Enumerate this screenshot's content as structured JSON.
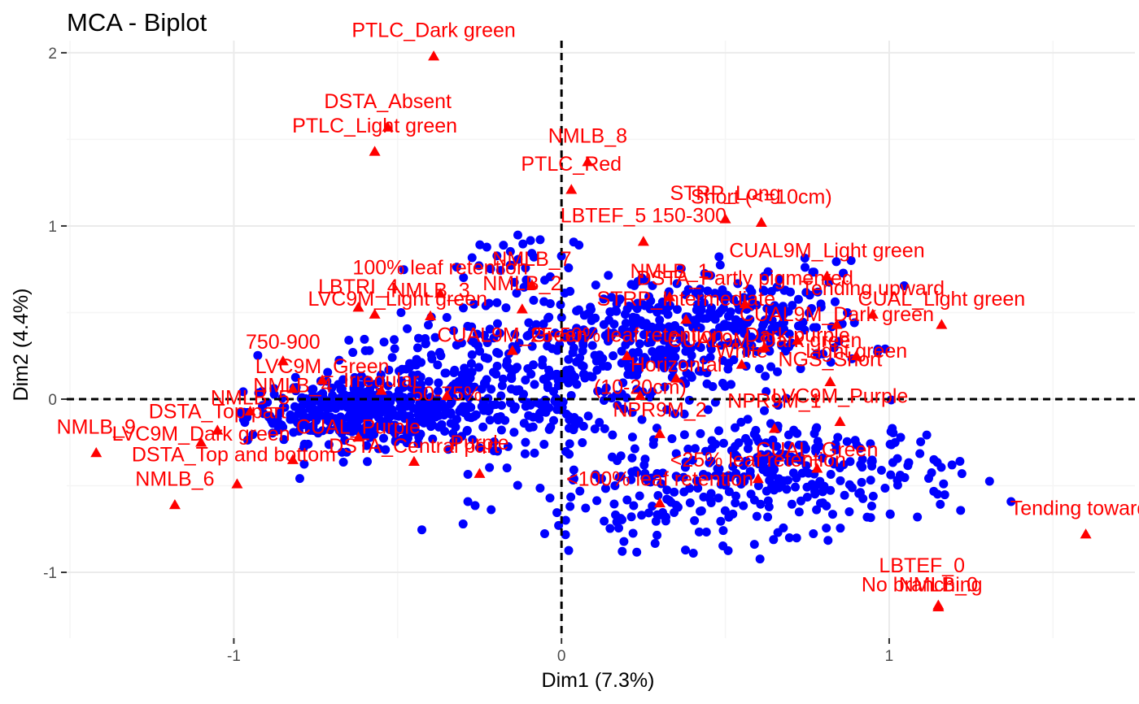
{
  "chart_data": {
    "type": "scatter",
    "title": "MCA - Biplot",
    "xlabel": "Dim1 (7.3%)",
    "ylabel": "Dim2 (4.4%)",
    "xlim": [
      -1.51,
      1.75
    ],
    "ylim": [
      -1.38,
      2.07
    ],
    "x_ticks": [
      -1,
      0,
      1
    ],
    "x_tick_labels": [
      "-1",
      "0",
      "1"
    ],
    "y_ticks": [
      -1,
      0,
      1,
      2
    ],
    "y_tick_labels": [
      "-1",
      "0",
      "1",
      "2"
    ],
    "grid": true,
    "reference_lines": {
      "x": 0,
      "y": 0,
      "style": "dashed"
    },
    "colors": {
      "individuals": "#0000ff",
      "variables": "#ff0000",
      "grid_major": "#ebebeb",
      "grid_minor": "#f5f5f5",
      "reference": "#000000"
    },
    "series": [
      {
        "kind": "individuals",
        "marker": "circle",
        "color": "#0000ff",
        "points": []
      },
      {
        "kind": "variable_categories",
        "marker": "triangle",
        "color": "#ff0000",
        "points": [
          {
            "label": "PTLC_Dark green",
            "x": -0.39,
            "y": 1.98
          },
          {
            "label": "DSTA_Absent",
            "x": -0.53,
            "y": 1.57
          },
          {
            "label": "PTLC_Light green",
            "x": -0.57,
            "y": 1.43
          },
          {
            "label": "NMLB_8",
            "x": 0.08,
            "y": 1.37
          },
          {
            "label": "PTLC_Red",
            "x": 0.03,
            "y": 1.21
          },
          {
            "label": "STRP_Long",
            "x": 0.5,
            "y": 1.04
          },
          {
            "label": "Short (<=10cm)",
            "x": 0.61,
            "y": 1.02
          },
          {
            "label": "LBTEF_5 150-300",
            "x": 0.25,
            "y": 0.91
          },
          {
            "label": "CUAL9M_Light green",
            "x": 0.81,
            "y": 0.71
          },
          {
            "label": "100% leaf retention",
            "x": -0.37,
            "y": 0.61
          },
          {
            "label": "NMLB_7",
            "x": -0.09,
            "y": 0.66
          },
          {
            "label": "NMLB_2",
            "x": -0.12,
            "y": 0.52
          },
          {
            "label": "NMLB_1",
            "x": 0.33,
            "y": 0.59
          },
          {
            "label": "DSTA_Partly pigmented",
            "x": 0.56,
            "y": 0.55
          },
          {
            "label": "Tending upward",
            "x": 0.95,
            "y": 0.49
          },
          {
            "label": "CUAL_Light green",
            "x": 1.16,
            "y": 0.43
          },
          {
            "label": "LBTRI_4",
            "x": -0.62,
            "y": 0.53
          },
          {
            "label": "NMLB_3",
            "x": -0.4,
            "y": 0.48
          },
          {
            "label": "LVC9M_Light green",
            "x": -0.57,
            "y": 0.49
          },
          {
            "label": "STRP_Intermediate",
            "x": 0.38,
            "y": 0.46
          },
          {
            "label": "CUAL9M_Dark green",
            "x": 0.84,
            "y": 0.43
          },
          {
            "label": "Dark purple",
            "x": 0.72,
            "y": 0.34
          },
          {
            "label": "CUAL9M_Dark green",
            "x": 0.62,
            "y": 0.3
          },
          {
            "label": "Light green",
            "x": 0.9,
            "y": 0.25
          },
          {
            "label": "750-900",
            "x": -0.85,
            "y": 0.22
          },
          {
            "label": "CUAL9M_Green",
            "x": -0.15,
            "y": 0.28
          },
          {
            "label": "25-50% leaf retention",
            "x": 0.2,
            "y": 0.25
          },
          {
            "label": "White",
            "x": 0.55,
            "y": 0.2
          },
          {
            "label": "NGS_Short",
            "x": 0.82,
            "y": 0.1
          },
          {
            "label": "LVC9M_Green",
            "x": -0.73,
            "y": 0.11
          },
          {
            "label": "Irregular",
            "x": -0.55,
            "y": 0.05
          },
          {
            "label": "Horizontal",
            "x": 0.35,
            "y": 0.12
          },
          {
            "label": "NMLB_4",
            "x": -0.82,
            "y": 0.06
          },
          {
            "label": "(10-20cm)",
            "x": 0.24,
            "y": 0.02
          },
          {
            "label": "50-75%",
            "x": -0.35,
            "y": 0.02
          },
          {
            "label": "NMLB_5",
            "x": -0.95,
            "y": -0.07
          },
          {
            "label": "LVC9M_Purple",
            "x": 0.85,
            "y": -0.13
          },
          {
            "label": "NPR9M_2",
            "x": 0.3,
            "y": -0.2
          },
          {
            "label": "NPR9M_1",
            "x": 0.65,
            "y": -0.17
          },
          {
            "label": "DSTA_Top part",
            "x": -1.05,
            "y": -0.18
          },
          {
            "label": "CUAL_Purple",
            "x": -0.62,
            "y": -0.22
          },
          {
            "label": "NMLB_9",
            "x": -1.42,
            "y": -0.31
          },
          {
            "label": "LVC9M_Dark green",
            "x": -1.1,
            "y": -0.25
          },
          {
            "label": "DSTA_Central part",
            "x": -0.45,
            "y": -0.36
          },
          {
            "label": "Purple",
            "x": -0.25,
            "y": -0.43
          },
          {
            "label": "DSTA_Top and bottom",
            "x": -0.82,
            "y": -0.35
          },
          {
            "label": "CUAL_Green",
            "x": 0.78,
            "y": -0.4
          },
          {
            "label": "<25% leaf retention",
            "x": 0.6,
            "y": -0.46
          },
          {
            "label": "NMLB_6",
            "x": -0.99,
            "y": -0.49
          },
          {
            "label": "<100% leaf retention",
            "x": 0.3,
            "y": -0.6
          },
          {
            "label": "NMLB_6",
            "x": -1.18,
            "y": -0.61
          },
          {
            "label": "Tending toward the ground",
            "x": 1.6,
            "y": -0.78
          },
          {
            "label": "LBTEF_0",
            "x": 1.15,
            "y": -1.19
          },
          {
            "label": "NMLB_0",
            "x": 1.15,
            "y": -1.2
          },
          {
            "label": "No branching",
            "x": 1.15,
            "y": -1.2
          }
        ]
      }
    ],
    "visible_labels": [
      {
        "text": "PTLC_Dark green",
        "x": -0.39,
        "y": 2.09
      },
      {
        "text": "DSTA_Absent",
        "x": -0.53,
        "y": 1.68
      },
      {
        "text": "PTLC_Light green",
        "x": -0.57,
        "y": 1.54
      },
      {
        "text": "NMLB_8",
        "x": 0.08,
        "y": 1.48
      },
      {
        "text": "PTLC_Red",
        "x": 0.03,
        "y": 1.32
      },
      {
        "text": "STRP_Long",
        "x": 0.5,
        "y": 1.15
      },
      {
        "text": "Short (<=10cm)",
        "x": 0.61,
        "y": 1.13
      },
      {
        "text": "LBTEF_5 150-300",
        "x": 0.25,
        "y": 1.02
      },
      {
        "text": "CUAL9M_Light green",
        "x": 0.81,
        "y": 0.82
      },
      {
        "text": "100% leaf retention",
        "x": -0.37,
        "y": 0.72
      },
      {
        "text": "NMLB_7",
        "x": -0.09,
        "y": 0.77
      },
      {
        "text": "NMLB_2",
        "x": -0.12,
        "y": 0.63
      },
      {
        "text": "NMLB_1",
        "x": 0.33,
        "y": 0.7
      },
      {
        "text": "DSTA_Partly pigmented",
        "x": 0.56,
        "y": 0.66
      },
      {
        "text": "Tending upward",
        "x": 0.95,
        "y": 0.6
      },
      {
        "text": "CUAL_Light green",
        "x": 1.16,
        "y": 0.54
      },
      {
        "text": "LBTRI_4",
        "x": -0.62,
        "y": 0.61
      },
      {
        "text": "NMLB_3",
        "x": -0.4,
        "y": 0.59
      },
      {
        "text": "LVC9M_Light green",
        "x": -0.5,
        "y": 0.54
      },
      {
        "text": "STRP_Intermediate",
        "x": 0.38,
        "y": 0.54
      },
      {
        "text": "CUAL9M_Dark green",
        "x": 0.84,
        "y": 0.45
      },
      {
        "text": "Dark purple",
        "x": 0.72,
        "y": 0.33
      },
      {
        "text": "CUAL9M_Dark green",
        "x": 0.62,
        "y": 0.3
      },
      {
        "text": "Light green",
        "x": 0.9,
        "y": 0.24
      },
      {
        "text": "750-900",
        "x": -0.85,
        "y": 0.29
      },
      {
        "text": "CUAL9M_Green",
        "x": -0.15,
        "y": 0.33
      },
      {
        "text": "25-50% leaf retention",
        "x": 0.2,
        "y": 0.33
      },
      {
        "text": "White",
        "x": 0.55,
        "y": 0.24
      },
      {
        "text": "NGS_Short",
        "x": 0.82,
        "y": 0.19
      },
      {
        "text": "LVC9M_Green",
        "x": -0.73,
        "y": 0.15
      },
      {
        "text": "Irregular",
        "x": -0.55,
        "y": 0.07
      },
      {
        "text": "Horizontal",
        "x": 0.35,
        "y": 0.16
      },
      {
        "text": "NMLB_4",
        "x": -0.82,
        "y": 0.04
      },
      {
        "text": "(10-20cm)",
        "x": 0.24,
        "y": 0.03
      },
      {
        "text": "50-75%",
        "x": -0.35,
        "y": -0.01
      },
      {
        "text": "NMLB_5",
        "x": -0.95,
        "y": -0.03
      },
      {
        "text": "LVC9M_Purple",
        "x": 0.85,
        "y": -0.02
      },
      {
        "text": "NPR9M_2",
        "x": 0.3,
        "y": -0.1
      },
      {
        "text": "NPR9M_1",
        "x": 0.65,
        "y": -0.05
      },
      {
        "text": "DSTA_Top part",
        "x": -1.05,
        "y": -0.11
      },
      {
        "text": "CUAL_Purple",
        "x": -0.62,
        "y": -0.2
      },
      {
        "text": "NMLB_9",
        "x": -1.42,
        "y": -0.2
      },
      {
        "text": "LVC9M_Dark green",
        "x": -1.1,
        "y": -0.24
      },
      {
        "text": "DSTA_Central part",
        "x": -0.45,
        "y": -0.31
      },
      {
        "text": "Purple",
        "x": -0.25,
        "y": -0.29
      },
      {
        "text": "DSTA_Top and bottom",
        "x": -1.0,
        "y": -0.36
      },
      {
        "text": "CUAL_Green",
        "x": 0.78,
        "y": -0.33
      },
      {
        "text": "<25% leaf retention",
        "x": 0.6,
        "y": -0.39
      },
      {
        "text": "NMLB_6",
        "x": -1.18,
        "y": -0.5
      },
      {
        "text": "<100% leaf retention",
        "x": 0.3,
        "y": -0.5
      },
      {
        "text": "Tending toward",
        "x": 1.58,
        "y": -0.67
      },
      {
        "text": "LBTEF_0",
        "x": 1.1,
        "y": -1.0
      },
      {
        "text": "NMLB_0",
        "x": 1.15,
        "y": -1.11
      },
      {
        "text": "No branching",
        "x": 1.1,
        "y": -1.11
      }
    ]
  }
}
